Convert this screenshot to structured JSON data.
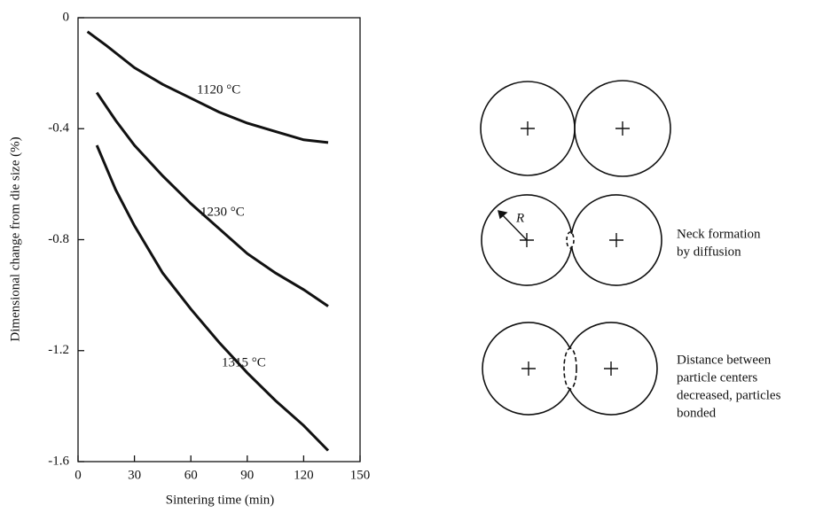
{
  "chart_data": {
    "type": "line",
    "xlabel": "Sintering time (min)",
    "ylabel": "Dimensional change from die size (%)",
    "xlim": [
      0,
      150
    ],
    "xticks": [
      0,
      30,
      60,
      90,
      120,
      150
    ],
    "ylim": [
      -1.6,
      0
    ],
    "yticks": [
      0,
      -0.4,
      -0.8,
      -1.2,
      -1.6
    ],
    "series": [
      {
        "name": "1120 °C",
        "color": "#111111",
        "x": [
          5,
          15,
          30,
          45,
          60,
          75,
          90,
          105,
          120,
          133
        ],
        "values": [
          -0.05,
          -0.1,
          -0.18,
          -0.24,
          -0.29,
          -0.34,
          -0.38,
          -0.41,
          -0.44,
          -0.45
        ]
      },
      {
        "name": "1230 °C",
        "color": "#111111",
        "x": [
          10,
          20,
          30,
          45,
          60,
          75,
          90,
          105,
          120,
          133
        ],
        "values": [
          -0.27,
          -0.37,
          -0.46,
          -0.57,
          -0.67,
          -0.76,
          -0.85,
          -0.92,
          -0.98,
          -1.04
        ]
      },
      {
        "name": "1315 °C",
        "color": "#111111",
        "x": [
          10,
          20,
          30,
          45,
          60,
          75,
          90,
          105,
          120,
          133
        ],
        "values": [
          -0.46,
          -0.62,
          -0.75,
          -0.92,
          -1.05,
          -1.17,
          -1.28,
          -1.38,
          -1.47,
          -1.56
        ]
      }
    ]
  },
  "diagram": {
    "radius_label": "R",
    "captions": [
      [
        "Neck formation",
        "by diffusion"
      ],
      [
        "Distance between",
        "particle centers",
        "decreased, particles",
        "bonded"
      ]
    ]
  }
}
